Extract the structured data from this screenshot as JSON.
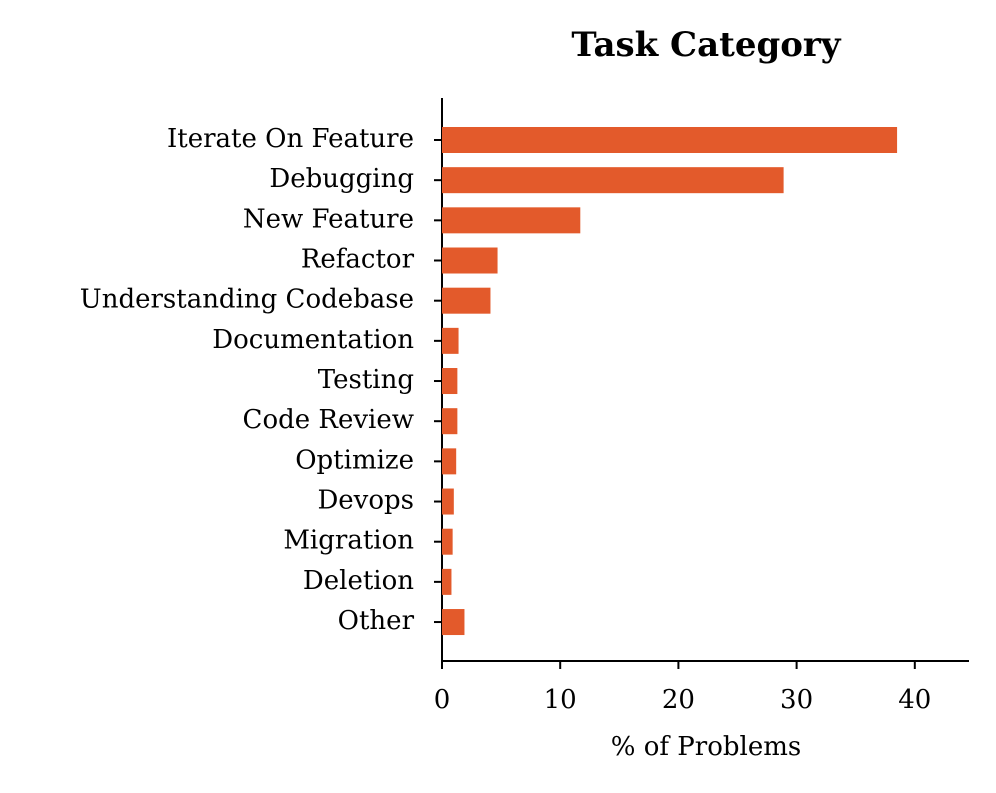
{
  "chart_data": {
    "type": "barh",
    "title": "Task Category",
    "xlabel": "% of Problems",
    "categories": [
      "Iterate On Feature",
      "Debugging",
      "New Feature",
      "Refactor",
      "Understanding Codebase",
      "Documentation",
      "Testing",
      "Code Review",
      "Optimize",
      "Devops",
      "Migration",
      "Deletion",
      "Other"
    ],
    "values": [
      38.5,
      28.9,
      11.7,
      4.7,
      4.1,
      1.4,
      1.3,
      1.3,
      1.2,
      1.0,
      0.9,
      0.8,
      1.9
    ],
    "color": "#e35a2b",
    "xlim": [
      0,
      44.5
    ],
    "xticks": [
      0,
      10,
      20,
      30,
      40
    ],
    "grid": false
  }
}
